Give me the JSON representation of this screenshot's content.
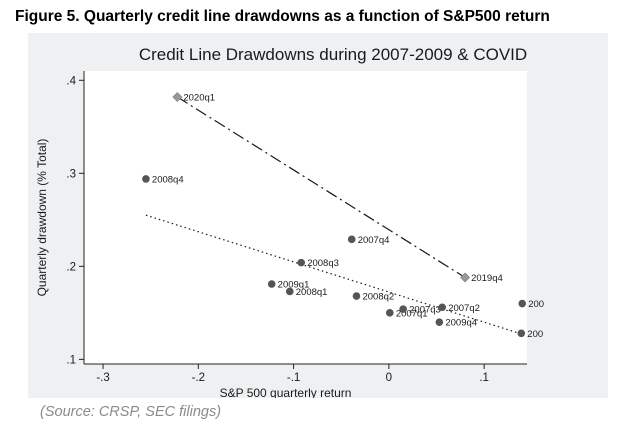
{
  "figure_caption": "Figure 5. Quarterly credit line drawdowns as a function of S&P500 return",
  "source_note": "(Source: CRSP, SEC filings)",
  "chart_data": {
    "type": "scatter",
    "title": "Credit Line Drawdowns during 2007-2009 & COVID",
    "xlabel": "S&P 500 quarterly return",
    "ylabel": "Quarterly drawdown (% Total)",
    "xlim": [
      -0.32,
      0.145
    ],
    "ylim": [
      0.095,
      0.41
    ],
    "xticks": [
      -0.3,
      -0.2,
      -0.1,
      0,
      0.1
    ],
    "xtick_labels": [
      "-.3",
      "-.2",
      "-.1",
      "0",
      ".1"
    ],
    "yticks": [
      0.1,
      0.2,
      0.3,
      0.4
    ],
    "ytick_labels": [
      ".1",
      ".2",
      ".3",
      ".4"
    ],
    "grid": false,
    "legend": "none",
    "colors": {
      "gfc_points": "#555555",
      "covid_points": "#999999",
      "fit_lines": "#1a1a1a"
    },
    "series": [
      {
        "marker": "circle",
        "points": [
          {
            "label": "2008q4",
            "x": -0.255,
            "y": 0.294
          },
          {
            "label": "2008q3",
            "x": -0.092,
            "y": 0.204
          },
          {
            "label": "2009q1",
            "x": -0.123,
            "y": 0.181
          },
          {
            "label": "2008q1",
            "x": -0.104,
            "y": 0.173
          },
          {
            "label": "2007q4",
            "x": -0.039,
            "y": 0.229
          },
          {
            "label": "2008q2",
            "x": -0.034,
            "y": 0.168
          },
          {
            "label": "2007q1",
            "x": 0.001,
            "y": 0.15
          },
          {
            "label": "2007q3",
            "x": 0.015,
            "y": 0.154
          },
          {
            "label": "2007q2",
            "x": 0.056,
            "y": 0.156
          },
          {
            "label": "2009q4",
            "x": 0.053,
            "y": 0.14
          },
          {
            "label": "200",
            "x": 0.14,
            "y": 0.16
          },
          {
            "label": "200",
            "x": 0.139,
            "y": 0.128
          }
        ],
        "fit": {
          "style": "dotted",
          "x": [
            -0.255,
            0.14
          ],
          "y": [
            0.255,
            0.127
          ]
        }
      },
      {
        "marker": "diamond",
        "points": [
          {
            "label": "2020q1",
            "x": -0.222,
            "y": 0.382
          },
          {
            "label": "2019q4",
            "x": 0.08,
            "y": 0.188
          }
        ],
        "fit": {
          "style": "longdash-dot",
          "x": [
            -0.222,
            0.08
          ],
          "y": [
            0.382,
            0.188
          ]
        }
      }
    ]
  }
}
